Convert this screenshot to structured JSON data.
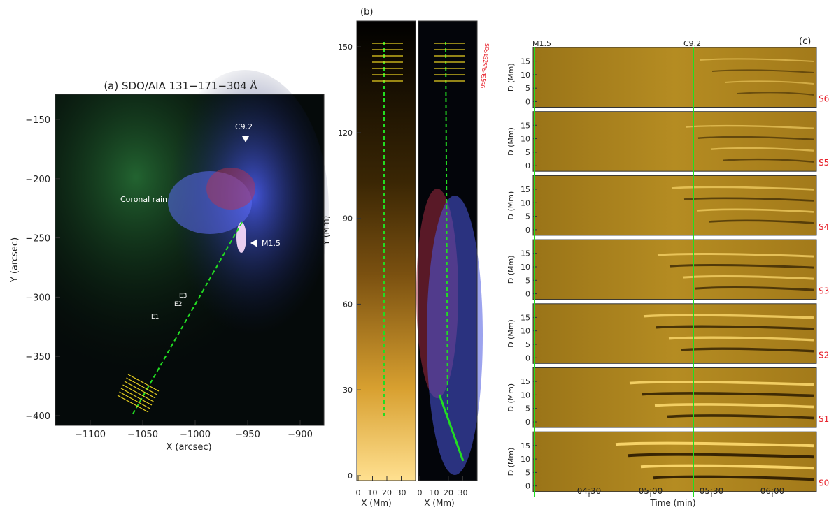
{
  "panel_a": {
    "title": "(a) SDO/AIA  131−171−304 Å",
    "xlabel": "X (arcsec)",
    "ylabel": "Y (arcsec)",
    "xticks": [
      {
        "label": "−1100",
        "v": -1100
      },
      {
        "label": "−1050",
        "v": -1050
      },
      {
        "label": "−1000",
        "v": -1000
      },
      {
        "label": "−950",
        "v": -950
      },
      {
        "label": "−900",
        "v": -900
      }
    ],
    "yticks": [
      {
        "label": "−150",
        "v": -150
      },
      {
        "label": "−200",
        "v": -200
      },
      {
        "label": "−250",
        "v": -250
      },
      {
        "label": "−300",
        "v": -300
      },
      {
        "label": "−350",
        "v": -350
      },
      {
        "label": "−400",
        "v": -400
      }
    ],
    "labels": {
      "c92": "C9.2",
      "m15": "M1.5",
      "coronal_rain": "Coronal rain",
      "e1": "E1",
      "e2": "E2",
      "e3": "E3"
    }
  },
  "panel_b": {
    "title": "(b)",
    "xlabel": "X (Mm)",
    "ylabel": "Y (Mm)",
    "xticks": [
      {
        "label": "0",
        "v": 0
      },
      {
        "label": "10",
        "v": 10
      },
      {
        "label": "20",
        "v": 20
      },
      {
        "label": "30",
        "v": 30
      }
    ],
    "yticks": [
      {
        "label": "0",
        "v": 0
      },
      {
        "label": "30",
        "v": 30
      },
      {
        "label": "60",
        "v": 60
      },
      {
        "label": "90",
        "v": 90
      },
      {
        "label": "120",
        "v": 120
      },
      {
        "label": "150",
        "v": 150
      }
    ],
    "slit_labels": [
      "S0",
      "S1",
      "S2",
      "S3",
      "S4",
      "S5",
      "S6"
    ]
  },
  "panel_c": {
    "title": "(c)",
    "xlabel": "Time (min)",
    "ylabel": "D (Mm)",
    "top_labels": {
      "m15": "M1.5",
      "c92": "C9.2"
    },
    "xticks": [
      "04:30",
      "05:00",
      "05:30",
      "06:00"
    ],
    "yticks": [
      "0",
      "5",
      "10",
      "15"
    ],
    "rows": [
      "S6",
      "S5",
      "S4",
      "S3",
      "S2",
      "S1",
      "S0"
    ]
  },
  "colors": {
    "slit_red": "#e8202a",
    "green_line": "#22dd22",
    "yellow_slit": "#e8d020",
    "gold": "#b48a1c"
  }
}
